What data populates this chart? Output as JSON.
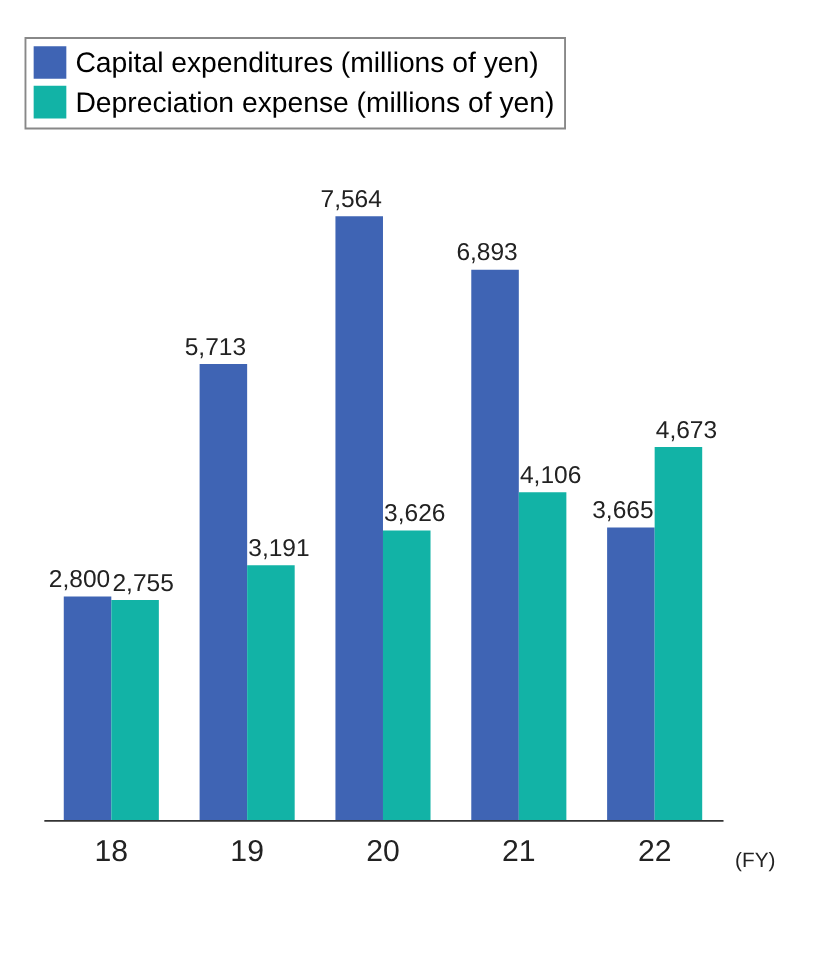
{
  "chart_data": {
    "type": "bar",
    "categories": [
      "18",
      "19",
      "20",
      "21",
      "22"
    ],
    "series": [
      {
        "name": "Capital expenditures (millions of yen)",
        "color": "#3f64b4",
        "values": [
          2800,
          5713,
          7564,
          6893,
          3665
        ],
        "value_labels": [
          "2,800",
          "5,713",
          "7,564",
          "6,893",
          "3,665"
        ]
      },
      {
        "name": "Depreciation expense (millions of yen)",
        "color": "#12b3a6",
        "values": [
          2755,
          3191,
          3626,
          4106,
          4673
        ],
        "value_labels": [
          "2,755",
          "3,191",
          "3,626",
          "4,106",
          "4,673"
        ]
      }
    ],
    "legend": "top left",
    "grid": false,
    "annotations": [
      "(FY)"
    ]
  }
}
